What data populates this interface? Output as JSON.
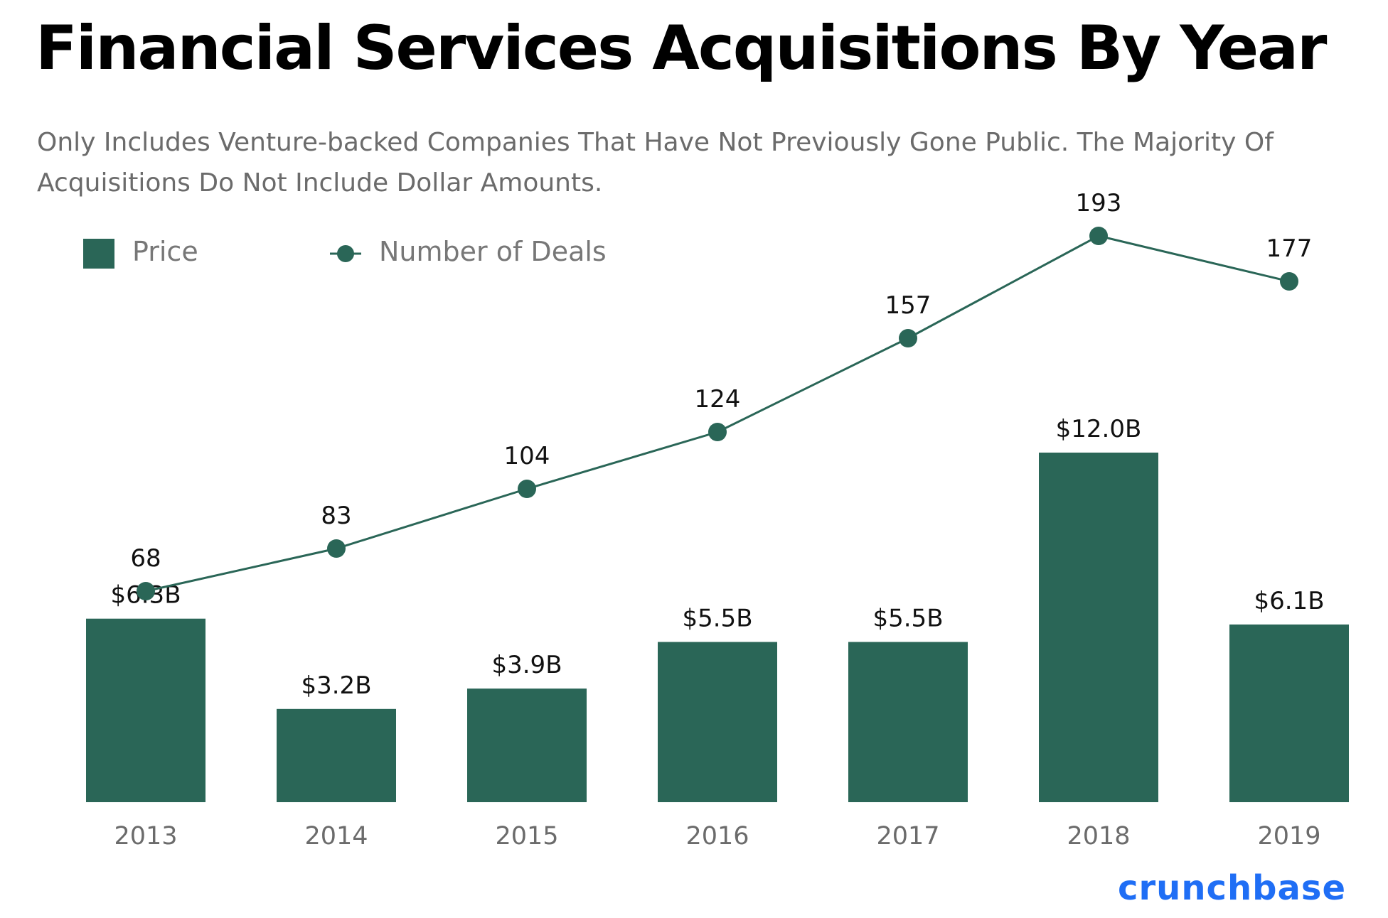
{
  "header": {
    "title": "Financial Services Acquisitions By Year",
    "subtitle": "Only Includes Venture-backed Companies That Have Not Previously Gone Public. The Majority Of Acquisitions Do Not Include Dollar Amounts."
  },
  "legend": {
    "price_label": "Price",
    "deals_label": "Number of Deals"
  },
  "colors": {
    "series": "#2a6657",
    "brand": "#1f6ef5",
    "axis_text": "#6b6b6b",
    "label_text": "#111111"
  },
  "brand": {
    "name": "crunchbase"
  },
  "chart_data": {
    "type": "bar",
    "title": "Financial Services Acquisitions By Year",
    "subtitle": "Only Includes Venture-backed Companies That Have Not Previously Gone Public. The Majority Of Acquisitions Do Not Include Dollar Amounts.",
    "categories": [
      "2013",
      "2014",
      "2015",
      "2016",
      "2017",
      "2018",
      "2019"
    ],
    "series": [
      {
        "name": "Price",
        "type": "bar",
        "values": [
          6.3,
          3.2,
          3.9,
          5.5,
          5.5,
          12.0,
          6.1
        ],
        "labels": [
          "$6.3B",
          "$3.2B",
          "$3.9B",
          "$5.5B",
          "$5.5B",
          "$12.0B",
          "$6.1B"
        ]
      },
      {
        "name": "Number of Deals",
        "type": "line",
        "values": [
          68,
          83,
          104,
          124,
          157,
          193,
          177
        ],
        "labels": [
          "68",
          "83",
          "104",
          "124",
          "157",
          "193",
          "177"
        ]
      }
    ],
    "xlabel": "",
    "ylabel": "",
    "grid": false,
    "legend_position": "top-left"
  }
}
